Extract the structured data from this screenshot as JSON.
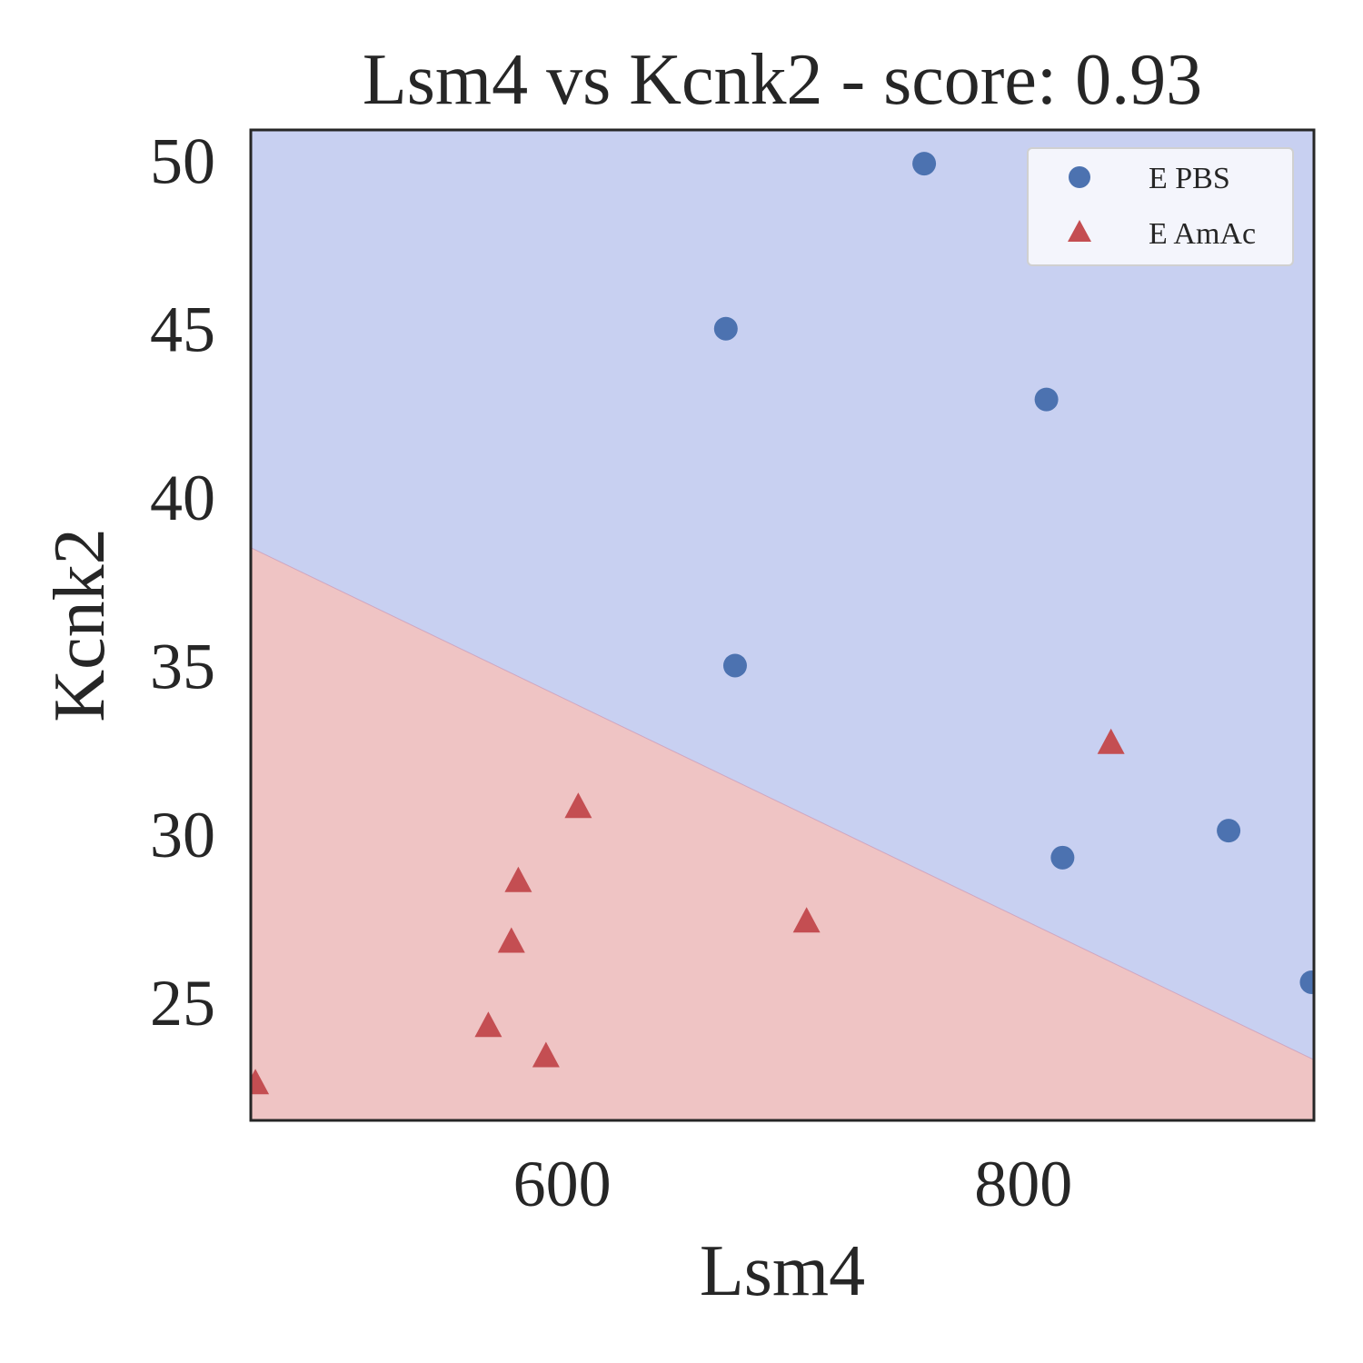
{
  "chart_data": {
    "type": "scatter",
    "title": "Lsm4 vs Kcnk2 - score: 0.93",
    "xlabel": "Lsm4",
    "ylabel": "Kcnk2",
    "xlim": [
      465,
      926
    ],
    "ylim": [
      21.5,
      50.9
    ],
    "xticks": [
      600,
      800
    ],
    "yticks": [
      25,
      30,
      35,
      40,
      45,
      50
    ],
    "grid": false,
    "legend_position": "top-right",
    "decision_boundary": {
      "points": [
        [
          465,
          38.5
        ],
        [
          926,
          23.3
        ]
      ],
      "above_color": "#c8d0f1",
      "below_color": "#efc4c4"
    },
    "series": [
      {
        "name": "E PBS",
        "marker": "circle",
        "color": "#4c72b0",
        "points": [
          [
            757,
            49.9
          ],
          [
            671,
            45.0
          ],
          [
            810,
            42.9
          ],
          [
            675,
            35.0
          ],
          [
            817,
            29.3
          ],
          [
            889,
            30.1
          ],
          [
            925,
            25.6
          ]
        ]
      },
      {
        "name": "E AmAc",
        "marker": "triangle",
        "color": "#c44e52",
        "points": [
          [
            467,
            22.6
          ],
          [
            568,
            24.3
          ],
          [
            593,
            23.4
          ],
          [
            578,
            26.8
          ],
          [
            581,
            28.6
          ],
          [
            607,
            30.8
          ],
          [
            706,
            27.4
          ],
          [
            838,
            32.7
          ]
        ]
      }
    ]
  }
}
